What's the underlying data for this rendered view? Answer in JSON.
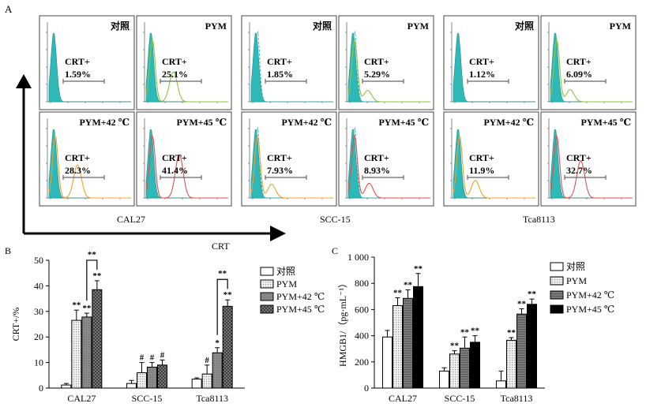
{
  "panel_a": {
    "letter": "A",
    "x_axis_label": "CRT",
    "cell_lines": [
      "CAL27",
      "SCC-15",
      "Tca8113"
    ],
    "gate_label": "CRT+",
    "panels": [
      {
        "cell": "CAL27",
        "row": 0,
        "col": 0,
        "condition": "对照",
        "percent": "1.59%",
        "overlay": "none"
      },
      {
        "cell": "CAL27",
        "row": 0,
        "col": 1,
        "condition": "PYM",
        "percent": "25.1%",
        "overlay": "green"
      },
      {
        "cell": "CAL27",
        "row": 1,
        "col": 0,
        "condition": "PYM+42 ℃",
        "percent": "28.3%",
        "overlay": "orange"
      },
      {
        "cell": "CAL27",
        "row": 1,
        "col": 1,
        "condition": "PYM+45 ℃",
        "percent": "41.4%",
        "overlay": "red"
      },
      {
        "cell": "SCC-15",
        "row": 0,
        "col": 0,
        "condition": "对照",
        "percent": "1.85%",
        "overlay": "none"
      },
      {
        "cell": "SCC-15",
        "row": 0,
        "col": 1,
        "condition": "PYM",
        "percent": "5.29%",
        "overlay": "green"
      },
      {
        "cell": "SCC-15",
        "row": 1,
        "col": 0,
        "condition": "PYM+42 ℃",
        "percent": "7.93%",
        "overlay": "orange"
      },
      {
        "cell": "SCC-15",
        "row": 1,
        "col": 1,
        "condition": "PYM+45 ℃",
        "percent": "8.93%",
        "overlay": "red"
      },
      {
        "cell": "Tca8113",
        "row": 0,
        "col": 0,
        "condition": "对照",
        "percent": "1.12%",
        "overlay": "none"
      },
      {
        "cell": "Tca8113",
        "row": 0,
        "col": 1,
        "condition": "PYM",
        "percent": "6.09%",
        "overlay": "green"
      },
      {
        "cell": "Tca8113",
        "row": 1,
        "col": 0,
        "condition": "PYM+42 ℃",
        "percent": "11.9%",
        "overlay": "orange"
      },
      {
        "cell": "Tca8113",
        "row": 1,
        "col": 1,
        "condition": "PYM+45 ℃",
        "percent": "32.7%",
        "overlay": "red"
      }
    ],
    "colors": {
      "fill": "#2fb8b8",
      "green": "#8cc63f",
      "orange": "#f0a030",
      "red": "#e05050",
      "dashed": "#2fb8b8"
    }
  },
  "chart_data": [
    {
      "type": "bar",
      "panel": "B",
      "categories": [
        "CAL27",
        "SCC-15",
        "Tca8113"
      ],
      "ylabel": "CRT+/%",
      "ylim": [
        0,
        50
      ],
      "yticks": [
        0,
        10,
        20,
        30,
        40,
        50
      ],
      "series": [
        {
          "name": "对照",
          "values": [
            1.2,
            1.8,
            3.5
          ],
          "errors": [
            0.6,
            1.2,
            0.5
          ],
          "pattern": "white",
          "marks": [
            "",
            "",
            ""
          ]
        },
        {
          "name": "PYM",
          "values": [
            26.5,
            6.0,
            5.5
          ],
          "errors": [
            4.0,
            4.0,
            3.5
          ],
          "pattern": "dots",
          "marks": [
            "**",
            "#",
            "#"
          ]
        },
        {
          "name": "PYM+42 ℃",
          "values": [
            27.8,
            8.2,
            13.8
          ],
          "errors": [
            1.5,
            1.8,
            2.0
          ],
          "pattern": "grey",
          "marks": [
            "**",
            "#",
            "*"
          ]
        },
        {
          "name": "PYM+45 ℃",
          "values": [
            38.5,
            9.0,
            32.0
          ],
          "errors": [
            3.5,
            2.0,
            2.5
          ],
          "pattern": "check",
          "marks": [
            "**",
            "#",
            "**"
          ]
        }
      ],
      "brackets": [
        {
          "category": 0,
          "from": 2,
          "to": 3,
          "label": "**"
        },
        {
          "category": 2,
          "from": 2,
          "to": 3,
          "label": "**"
        }
      ],
      "legend": "right"
    },
    {
      "type": "bar",
      "panel": "C",
      "categories": [
        "CAL27",
        "SCC-15",
        "Tca8113"
      ],
      "ylabel": "HMGB1/（pg·mL⁻¹）",
      "ylim": [
        0,
        1000
      ],
      "yticks": [
        0,
        200,
        400,
        600,
        800,
        1000
      ],
      "ytick_labels": [
        "0",
        "200",
        "400",
        "600",
        "800",
        "1 000"
      ],
      "series": [
        {
          "name": "对照",
          "values": [
            390,
            130,
            55
          ],
          "errors": [
            50,
            25,
            75
          ],
          "pattern": "white",
          "marks": [
            "",
            "",
            ""
          ]
        },
        {
          "name": "PYM",
          "values": [
            630,
            260,
            365
          ],
          "errors": [
            60,
            25,
            20
          ],
          "pattern": "dots",
          "marks": [
            "**",
            "**",
            "**"
          ]
        },
        {
          "name": "PYM+42 ℃",
          "values": [
            685,
            305,
            565
          ],
          "errors": [
            65,
            85,
            40
          ],
          "pattern": "stripe",
          "marks": [
            "**",
            "**",
            "**"
          ]
        },
        {
          "name": "PYM+45 ℃",
          "values": [
            775,
            350,
            640
          ],
          "errors": [
            100,
            50,
            40
          ],
          "pattern": "black",
          "marks": [
            "**",
            "**",
            "**"
          ]
        }
      ],
      "brackets": [],
      "legend": "right"
    }
  ]
}
